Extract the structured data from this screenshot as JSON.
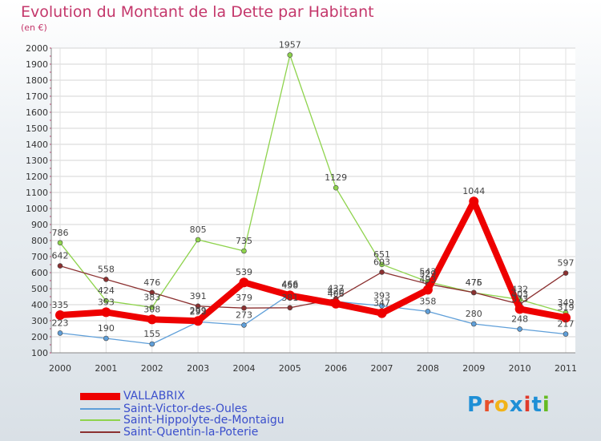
{
  "header": {
    "title": "Evolution du Montant de la Dette par Habitant",
    "unit": "(en €)"
  },
  "logo": {
    "text": "Proxiti",
    "colors": [
      "#1e8fd6",
      "#e8502a",
      "#f2b318",
      "#1e8fd6",
      "#e03a2b",
      "#1e8fd6",
      "#66bb22"
    ]
  },
  "chart_data": {
    "type": "line",
    "x": [
      "2000",
      "2001",
      "2002",
      "2003",
      "2004",
      "2005",
      "2006",
      "2007",
      "2008",
      "2009",
      "2010",
      "2011"
    ],
    "ylim": [
      100,
      2000
    ],
    "yticks": [
      100,
      200,
      300,
      400,
      500,
      600,
      700,
      800,
      900,
      1000,
      1100,
      1200,
      1300,
      1400,
      1500,
      1600,
      1700,
      1800,
      1900,
      2000
    ],
    "grid": true,
    "legend_position": "bottom-left",
    "series": [
      {
        "name": "VALLABRIX",
        "color": "#ee0000",
        "values": [
          335,
          353,
          308,
          299,
          539,
          458,
          406,
          347,
          493,
          1044,
          373,
          319
        ]
      },
      {
        "name": "Saint-Victor-des-Oules",
        "color": "#5f9fd9",
        "values": [
          223,
          190,
          155,
          293,
          273,
          466,
          420,
          393,
          358,
          280,
          248,
          217
        ]
      },
      {
        "name": "Saint-Hippolyte-de-Montaigu",
        "color": "#8ed34c",
        "values": [
          786,
          424,
          383,
          805,
          735,
          1957,
          1129,
          651,
          543,
          475,
          432,
          349
        ]
      },
      {
        "name": "Saint-Quentin-la-Poterie",
        "color": "#8b3030",
        "values": [
          642,
          558,
          476,
          391,
          379,
          381,
          437,
          603,
          529,
          476,
          403,
          597
        ]
      }
    ]
  }
}
